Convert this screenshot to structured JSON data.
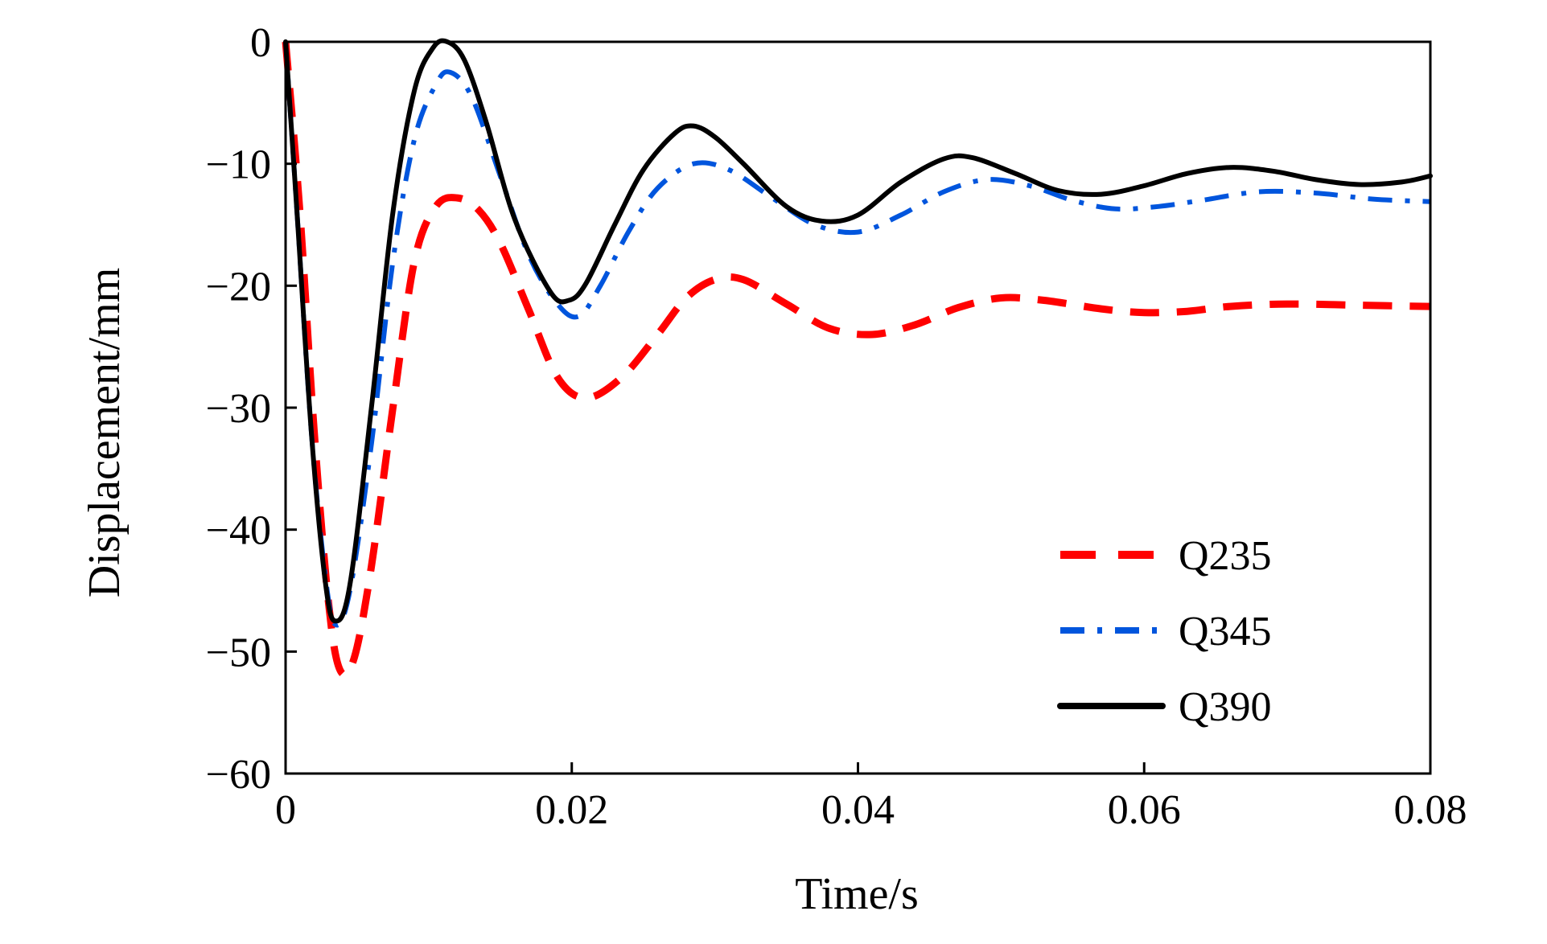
{
  "chart_data": {
    "type": "line",
    "title": "",
    "xlabel": "Time/s",
    "ylabel": "Displacement/mm",
    "xlim": [
      0,
      0.08
    ],
    "ylim": [
      -60,
      0
    ],
    "xticks": [
      0,
      0.02,
      0.04,
      0.06,
      0.08
    ],
    "xtick_labels": [
      "0",
      "0.02",
      "0.04",
      "0.06",
      "0.08"
    ],
    "yticks": [
      0,
      -10,
      -20,
      -30,
      -40,
      -50,
      -60
    ],
    "ytick_labels": [
      "0",
      "−10",
      "−20",
      "−30",
      "−40",
      "−50",
      "−60"
    ],
    "grid": false,
    "legend_position": "bottom-right",
    "series": [
      {
        "name": "Q235",
        "color": "#ff0000",
        "style": "dashed",
        "points": [
          [
            0,
            0
          ],
          [
            0.001,
            -14
          ],
          [
            0.002,
            -32
          ],
          [
            0.003,
            -46
          ],
          [
            0.0038,
            -51.5
          ],
          [
            0.0048,
            -50.5
          ],
          [
            0.006,
            -43
          ],
          [
            0.0075,
            -30
          ],
          [
            0.009,
            -18
          ],
          [
            0.0105,
            -13.5
          ],
          [
            0.012,
            -12.8
          ],
          [
            0.0135,
            -13.8
          ],
          [
            0.015,
            -16.5
          ],
          [
            0.017,
            -22
          ],
          [
            0.019,
            -27.5
          ],
          [
            0.021,
            -29.2
          ],
          [
            0.0235,
            -27.5
          ],
          [
            0.026,
            -24
          ],
          [
            0.028,
            -21
          ],
          [
            0.03,
            -19.5
          ],
          [
            0.032,
            -19.5
          ],
          [
            0.035,
            -21.5
          ],
          [
            0.038,
            -23.5
          ],
          [
            0.041,
            -24
          ],
          [
            0.044,
            -23.2
          ],
          [
            0.047,
            -21.8
          ],
          [
            0.05,
            -21
          ],
          [
            0.053,
            -21.2
          ],
          [
            0.057,
            -21.9
          ],
          [
            0.06,
            -22.2
          ],
          [
            0.063,
            -22.1
          ],
          [
            0.066,
            -21.7
          ],
          [
            0.07,
            -21.5
          ],
          [
            0.075,
            -21.6
          ],
          [
            0.08,
            -21.7
          ]
        ]
      },
      {
        "name": "Q345",
        "color": "#0055dd",
        "style": "dash-dot",
        "points": [
          [
            0,
            0
          ],
          [
            0.0008,
            -14
          ],
          [
            0.0018,
            -32
          ],
          [
            0.0028,
            -44
          ],
          [
            0.0035,
            -47.8
          ],
          [
            0.0045,
            -45
          ],
          [
            0.006,
            -33
          ],
          [
            0.0075,
            -18
          ],
          [
            0.009,
            -8
          ],
          [
            0.0105,
            -3.5
          ],
          [
            0.0115,
            -2.5
          ],
          [
            0.013,
            -4.5
          ],
          [
            0.015,
            -11
          ],
          [
            0.017,
            -17.5
          ],
          [
            0.019,
            -21.5
          ],
          [
            0.0205,
            -22.5
          ],
          [
            0.022,
            -20
          ],
          [
            0.024,
            -15.5
          ],
          [
            0.026,
            -12
          ],
          [
            0.0285,
            -10
          ],
          [
            0.031,
            -10.5
          ],
          [
            0.034,
            -12.8
          ],
          [
            0.037,
            -15
          ],
          [
            0.04,
            -15.6
          ],
          [
            0.043,
            -14.2
          ],
          [
            0.046,
            -12.3
          ],
          [
            0.049,
            -11.3
          ],
          [
            0.052,
            -11.8
          ],
          [
            0.055,
            -13
          ],
          [
            0.058,
            -13.7
          ],
          [
            0.061,
            -13.5
          ],
          [
            0.064,
            -13
          ],
          [
            0.068,
            -12.3
          ],
          [
            0.072,
            -12.4
          ],
          [
            0.076,
            -12.9
          ],
          [
            0.08,
            -13.1
          ]
        ]
      },
      {
        "name": "Q390",
        "color": "#000000",
        "style": "solid",
        "points": [
          [
            0,
            0
          ],
          [
            0.0008,
            -14
          ],
          [
            0.0018,
            -32
          ],
          [
            0.0028,
            -44.5
          ],
          [
            0.0035,
            -47.5
          ],
          [
            0.0045,
            -44.5
          ],
          [
            0.006,
            -30
          ],
          [
            0.0075,
            -14
          ],
          [
            0.009,
            -4
          ],
          [
            0.0103,
            -0.5
          ],
          [
            0.0113,
            0
          ],
          [
            0.0125,
            -1.5
          ],
          [
            0.014,
            -6.5
          ],
          [
            0.016,
            -14.5
          ],
          [
            0.0185,
            -20.5
          ],
          [
            0.0198,
            -21.2
          ],
          [
            0.021,
            -19.8
          ],
          [
            0.023,
            -15
          ],
          [
            0.025,
            -10.5
          ],
          [
            0.0272,
            -7.5
          ],
          [
            0.0285,
            -6.9
          ],
          [
            0.03,
            -7.8
          ],
          [
            0.032,
            -10
          ],
          [
            0.035,
            -13.5
          ],
          [
            0.0375,
            -14.7
          ],
          [
            0.04,
            -14.2
          ],
          [
            0.043,
            -11.5
          ],
          [
            0.046,
            -9.6
          ],
          [
            0.048,
            -9.5
          ],
          [
            0.051,
            -10.8
          ],
          [
            0.054,
            -12.2
          ],
          [
            0.057,
            -12.5
          ],
          [
            0.06,
            -11.8
          ],
          [
            0.063,
            -10.8
          ],
          [
            0.066,
            -10.3
          ],
          [
            0.069,
            -10.6
          ],
          [
            0.072,
            -11.3
          ],
          [
            0.075,
            -11.7
          ],
          [
            0.078,
            -11.5
          ],
          [
            0.08,
            -11
          ]
        ]
      }
    ]
  }
}
